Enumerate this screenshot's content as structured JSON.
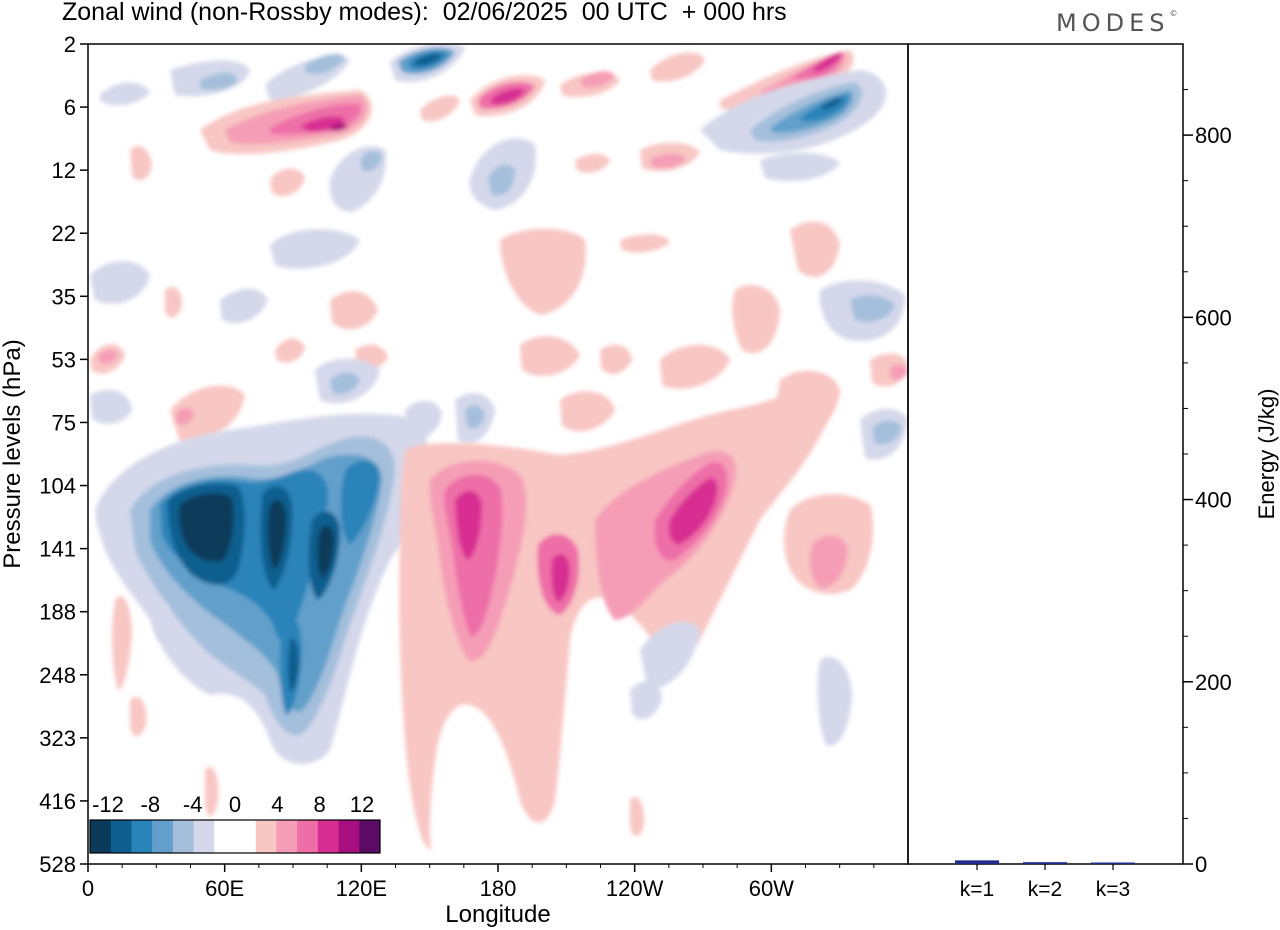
{
  "title": "Zonal wind (non-Rossby modes):  02/06/2025  00 UTC  + 000 hrs",
  "logo": "MODES",
  "logo_mark": "©",
  "colors": {
    "negative": [
      "#0b3a5a",
      "#0e5f8f",
      "#2a83b9",
      "#62a0cb",
      "#a4bfdc",
      "#d4d8ea"
    ],
    "zero": "#ffffff",
    "positive": [
      "#f8c6c3",
      "#f59db6",
      "#ee6ea7",
      "#d82e92",
      "#a80f7e",
      "#5c0b64"
    ],
    "energy_bar": "#1f2a8a",
    "axis": "#000000"
  },
  "chart_data": [
    {
      "type": "heatmap",
      "title": "Zonal wind (non-Rossby modes):  02/06/2025  00 UTC  + 000 hrs",
      "xlabel": "Longitude",
      "ylabel": "Pressure levels (hPa)",
      "x_ticks": [
        "0",
        "60E",
        "120E",
        "180",
        "120W",
        "60W"
      ],
      "y_ticks": [
        "2",
        "6",
        "12",
        "22",
        "35",
        "53",
        "75",
        "104",
        "141",
        "188",
        "248",
        "323",
        "416",
        "528"
      ],
      "colorbar_labels": [
        "-12",
        "-8",
        "-4",
        "0",
        "4",
        "8",
        "12"
      ],
      "colorbar_levels": [
        -14,
        -12,
        -10,
        -8,
        -6,
        -4,
        -2,
        2,
        4,
        6,
        8,
        10,
        12,
        14
      ],
      "features": [
        {
          "lon": 40,
          "level": "141",
          "value": -13
        },
        {
          "lon": 60,
          "level": "141",
          "value": -13
        },
        {
          "lon": 85,
          "level": "141",
          "value": -12
        },
        {
          "lon": 105,
          "level": "141",
          "value": -12
        },
        {
          "lon": 85,
          "level": "248",
          "value": -8
        },
        {
          "lon": 168,
          "level": "141",
          "value": 10
        },
        {
          "lon": 170,
          "level": "188",
          "value": 8
        },
        {
          "lon": 208,
          "level": "141",
          "value": 8
        },
        {
          "lon": 238,
          "level": "141",
          "value": 7
        },
        {
          "lon": 252,
          "level": "104",
          "value": 9
        },
        {
          "lon": 323,
          "level": "141",
          "value": 5
        },
        {
          "lon": 160,
          "level": "2",
          "value": -13
        },
        {
          "lon": 105,
          "level": "6",
          "value": 10
        },
        {
          "lon": 175,
          "level": "6",
          "value": 8
        },
        {
          "lon": 325,
          "level": "2",
          "value": 10
        },
        {
          "lon": 325,
          "level": "6",
          "value": -10
        }
      ]
    },
    {
      "type": "bar",
      "ylabel": "Energy (J/kg)",
      "ylim": [
        0,
        900
      ],
      "y_ticks": [
        "0",
        "200",
        "400",
        "600",
        "800"
      ],
      "categories": [
        "k=1",
        "k=2",
        "k=3"
      ],
      "values": [
        4,
        2,
        1
      ]
    }
  ]
}
